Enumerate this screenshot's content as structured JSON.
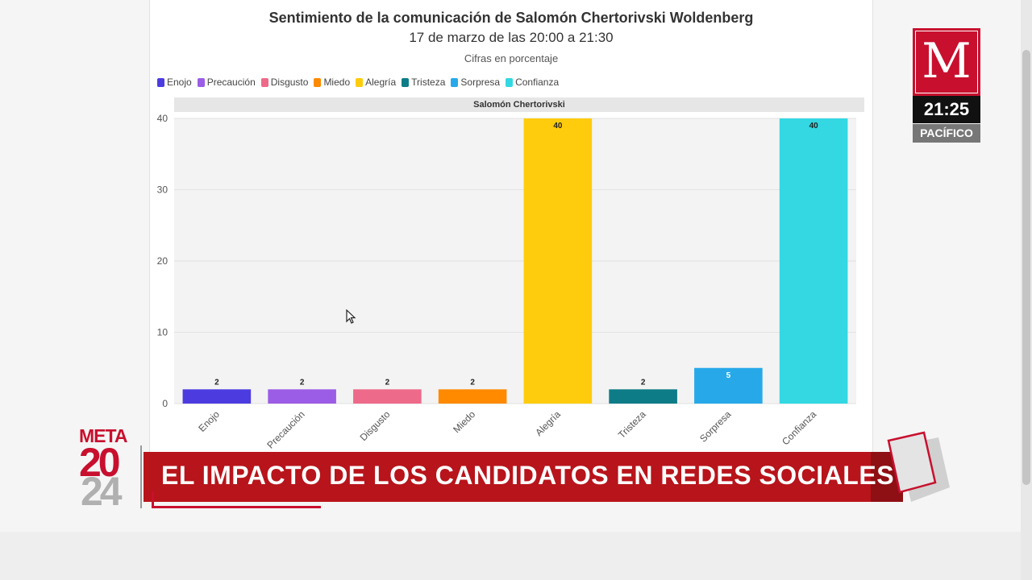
{
  "chart_data": {
    "type": "bar",
    "title": "Sentimiento de la comunicación de Salomón Chertorivski Woldenberg",
    "subtitle": "17 de marzo de las 20:00 a 21:30",
    "note": "Cifras en porcentaje",
    "panel_label": "Salomón Chertorivski",
    "categories": [
      "Enojo",
      "Precaución",
      "Disgusto",
      "Miedo",
      "Alegría",
      "Tristeza",
      "Sorpresa",
      "Confianza"
    ],
    "values": [
      2,
      2,
      2,
      2,
      40,
      2,
      5,
      40
    ],
    "colors": [
      "#4c3ce0",
      "#9b5de5",
      "#ee6a8a",
      "#ff8a00",
      "#ffcc0d",
      "#0e7c86",
      "#27a9e9",
      "#33d8e3"
    ],
    "yticks": [
      0,
      10,
      20,
      30,
      40
    ],
    "ylim": [
      0,
      40
    ],
    "grid": true,
    "legend_position": "top-left"
  },
  "overlay": {
    "logo_letter": "M",
    "clock": "21:25",
    "timezone": "PACÍFICO",
    "meta_word": "META",
    "year_top": "20",
    "year_bottom": "24",
    "headline": "EL IMPACTO DE LOS CANDIDATOS EN REDES SOCIALES",
    "brand_red": "#c8102e",
    "banner_red": "#b8141b"
  }
}
